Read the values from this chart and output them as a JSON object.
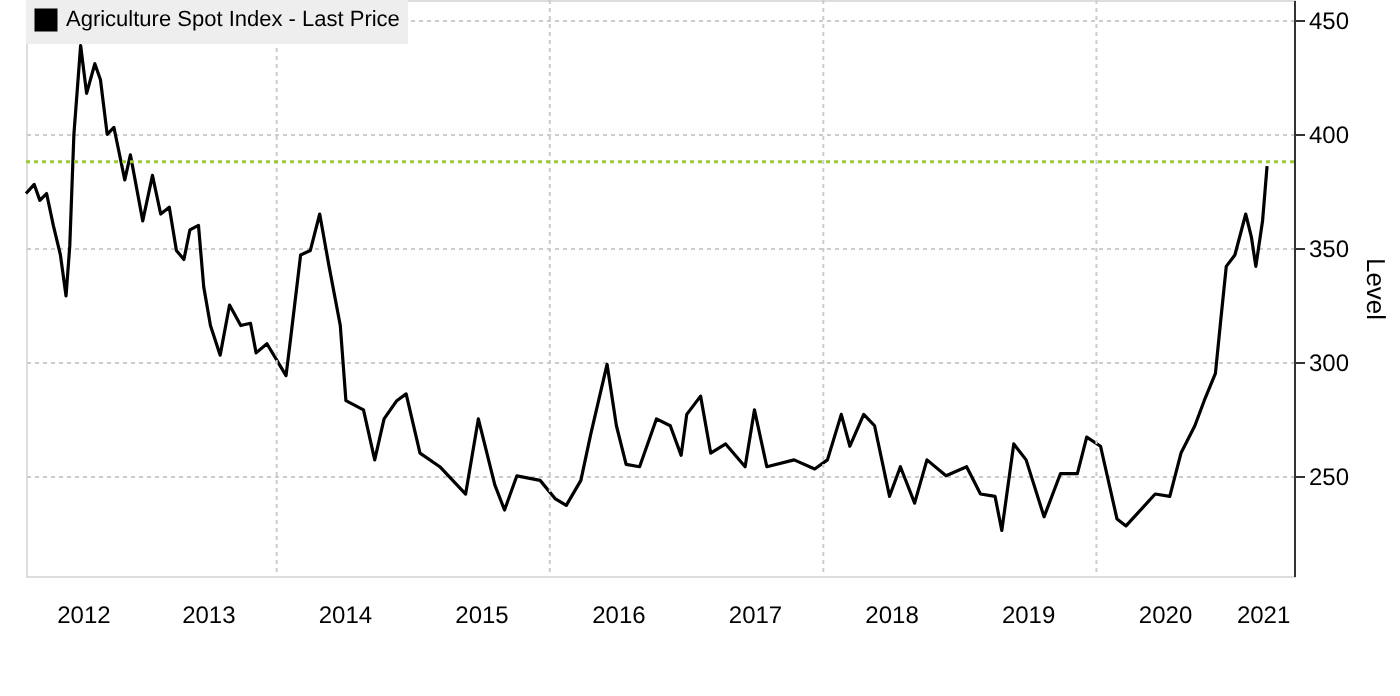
{
  "chart_data": {
    "type": "line",
    "ylabel": "Level",
    "legend": "top left",
    "grid": true,
    "line_style": "solid",
    "marker": "none",
    "x": [
      "2012-03-02",
      "2012-03-24",
      "2012-04-08",
      "2012-04-26",
      "2012-05-14",
      "2012-06-02",
      "2012-06-17",
      "2012-06-27",
      "2012-07-08",
      "2012-07-26",
      "2012-08-11",
      "2012-09-02",
      "2012-09-17",
      "2012-10-05",
      "2012-10-23",
      "2012-11-21",
      "2012-12-06",
      "2013-01-08",
      "2013-02-03",
      "2013-02-25",
      "2013-03-20",
      "2013-04-08",
      "2013-04-28",
      "2013-05-14",
      "2013-06-06",
      "2013-06-20",
      "2013-07-08",
      "2013-08-03",
      "2013-08-28",
      "2013-09-27",
      "2013-10-23",
      "2013-11-07",
      "2013-12-06",
      "2014-01-26",
      "2014-02-07",
      "2014-03-06",
      "2014-04-01",
      "2014-04-26",
      "2014-05-21",
      "2014-06-20",
      "2014-07-05",
      "2014-08-21",
      "2014-09-20",
      "2014-10-15",
      "2014-11-18",
      "2014-12-13",
      "2015-01-19",
      "2015-03-13",
      "2015-05-21",
      "2015-06-24",
      "2015-08-07",
      "2015-09-02",
      "2015-10-05",
      "2015-12-06",
      "2016-01-15",
      "2016-02-14",
      "2016-03-24",
      "2016-04-19",
      "2016-06-02",
      "2016-06-27",
      "2016-07-23",
      "2016-08-28",
      "2016-10-12",
      "2016-11-18",
      "2016-12-17",
      "2017-01-01",
      "2017-02-07",
      "2017-03-06",
      "2017-04-15",
      "2017-06-06",
      "2017-07-01",
      "2017-08-03",
      "2017-10-15",
      "2017-12-09",
      "2018-01-12",
      "2018-02-18",
      "2018-03-13",
      "2018-04-19",
      "2018-05-18",
      "2018-06-27",
      "2018-07-26",
      "2018-09-02",
      "2018-10-05",
      "2018-11-25",
      "2019-01-19",
      "2019-02-25",
      "2019-04-05",
      "2019-04-23",
      "2019-05-25",
      "2019-06-27",
      "2019-08-14",
      "2019-09-27",
      "2019-11-11",
      "2019-12-06",
      "2020-01-12",
      "2020-02-25",
      "2020-03-20",
      "2020-06-06",
      "2020-07-15",
      "2020-08-14",
      "2020-09-20",
      "2020-10-15",
      "2020-11-14",
      "2020-11-28",
      "2020-12-13",
      "2021-01-05",
      "2021-02-03",
      "2021-02-18",
      "2021-03-02",
      "2021-03-20",
      "2021-04-01"
    ],
    "series": [
      {
        "name": "Agriculture Spot Index - Last Price",
        "color": "#000000",
        "values": [
          374,
          378,
          371,
          374,
          360,
          347,
          329,
          351,
          400,
          439,
          418,
          431,
          424,
          400,
          403,
          380,
          391,
          362,
          382,
          365,
          368,
          349,
          345,
          358,
          360,
          333,
          316,
          303,
          325,
          316,
          317,
          304,
          308,
          294,
          310,
          347,
          349,
          365,
          342,
          316,
          283,
          279,
          257,
          275,
          283,
          286,
          260,
          254,
          242,
          275,
          246,
          235,
          250,
          248,
          240,
          237,
          248,
          268,
          299,
          272,
          255,
          254,
          275,
          272,
          259,
          277,
          285,
          260,
          264,
          254,
          279,
          254,
          257,
          253,
          257,
          277,
          263,
          277,
          272,
          241,
          254,
          238,
          257,
          250,
          254,
          242,
          241,
          226,
          264,
          257,
          232,
          251,
          251,
          267,
          263,
          231,
          228,
          242,
          241,
          260,
          272,
          283,
          295,
          318,
          342,
          347,
          365,
          355,
          342,
          362,
          386
        ]
      }
    ],
    "xlim": [
      "2012-03-02",
      "2021-06-12"
    ],
    "xticks": [
      {
        "value": "2012-08-01",
        "label": "2012"
      },
      {
        "value": "2013-07-01",
        "label": "2013"
      },
      {
        "value": "2014-07-01",
        "label": "2014"
      },
      {
        "value": "2015-07-01",
        "label": "2015"
      },
      {
        "value": "2016-07-01",
        "label": "2016"
      },
      {
        "value": "2017-07-01",
        "label": "2017"
      },
      {
        "value": "2018-07-01",
        "label": "2018"
      },
      {
        "value": "2019-07-01",
        "label": "2019"
      },
      {
        "value": "2020-07-01",
        "label": "2020"
      },
      {
        "value": "2021-03-20",
        "label": "2021"
      },
      {
        "value": "2014-01-01",
        "label": null
      },
      {
        "value": "2016-01-01",
        "label": null
      },
      {
        "value": "2018-01-01",
        "label": null
      },
      {
        "value": "2020-01-01",
        "label": null
      }
    ],
    "ylim": [
      206,
      459
    ],
    "yticks": [
      250,
      300,
      350,
      400,
      450
    ],
    "ref_lines": [
      {
        "axis": "y",
        "value": 388,
        "label": null,
        "color": "#99cc33",
        "line_style": "dotted"
      }
    ]
  }
}
